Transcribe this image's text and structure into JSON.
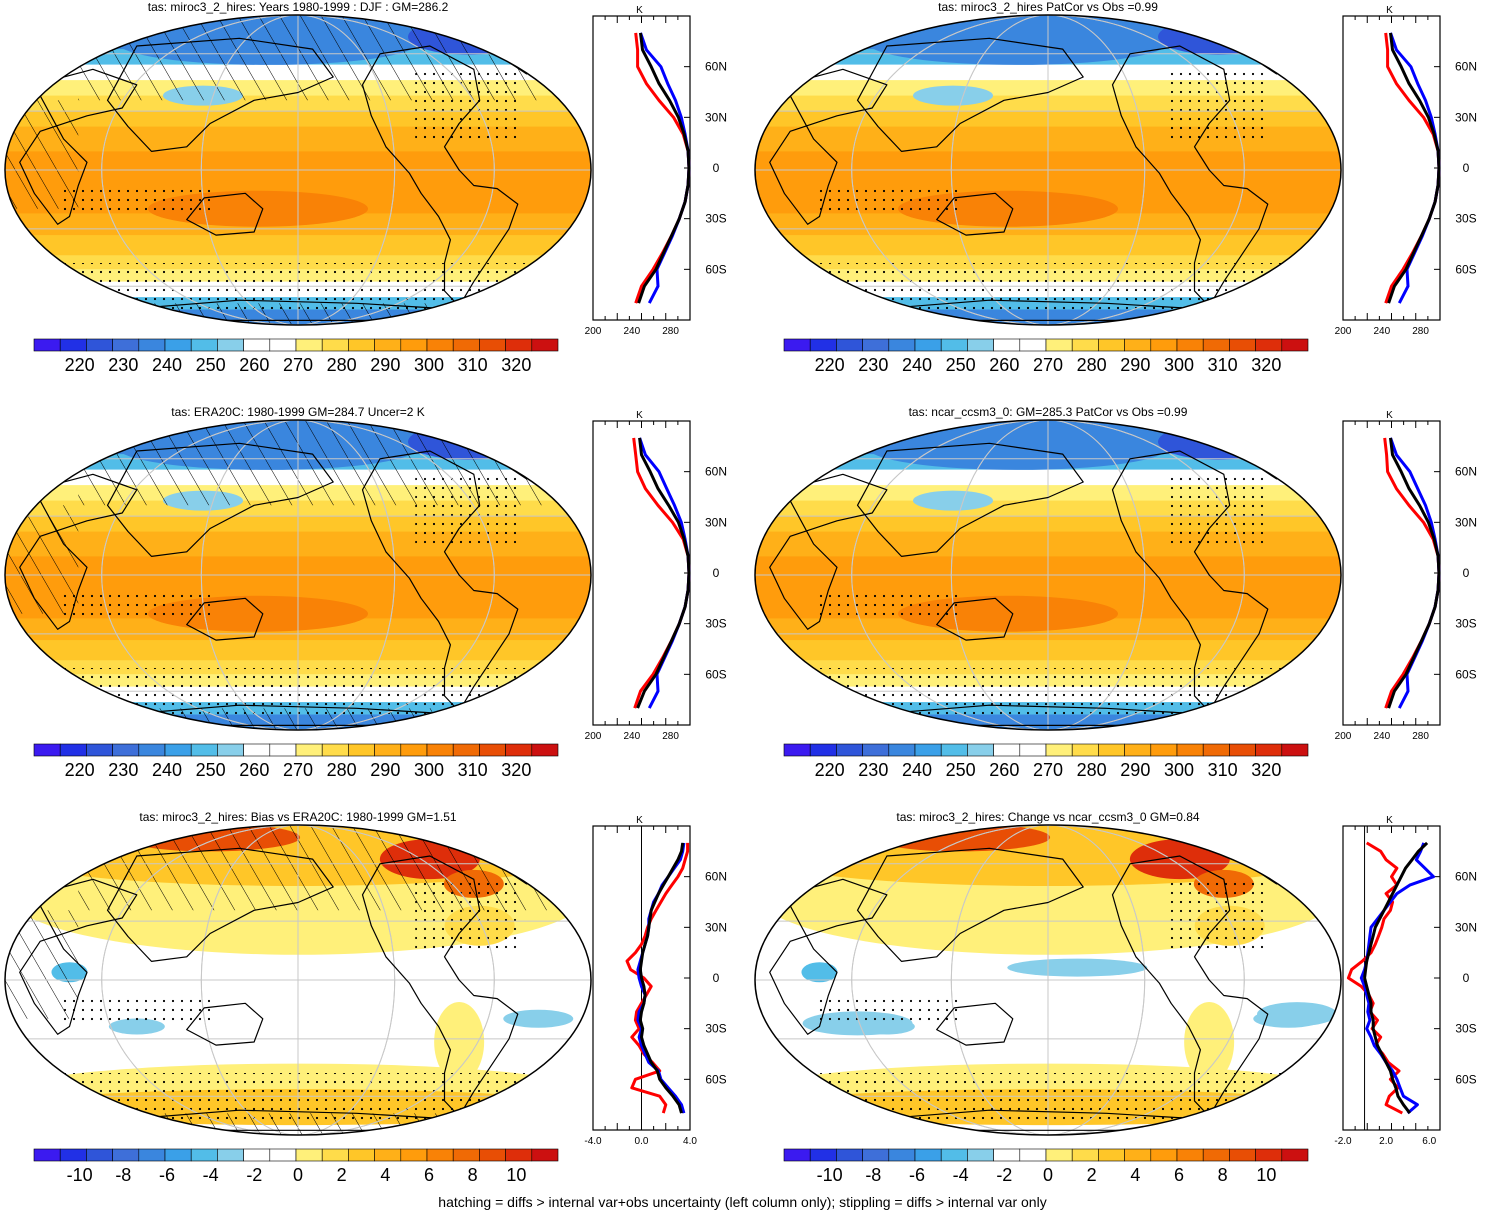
{
  "figure": {
    "footer": "hatching = diffs > internal var+obs uncertainty (left column only); stippling = diffs > internal var only"
  },
  "palettes": {
    "temperature": [
      "#3b1af0",
      "#2130e6",
      "#2f55d9",
      "#3e6fd9",
      "#3a86de",
      "#3aa0e8",
      "#52bde8",
      "#88cfea",
      "#ffffff",
      "#ffffff",
      "#fff07a",
      "#ffdc4a",
      "#ffc628",
      "#ffb018",
      "#ff9c0c",
      "#f98206",
      "#f06a05",
      "#e84e05",
      "#de2e0a",
      "#cc1010"
    ],
    "difference": [
      "#3b1af0",
      "#2130e6",
      "#2f55d9",
      "#3e6fd9",
      "#3a86de",
      "#3aa0e8",
      "#52bde8",
      "#88cfea",
      "#ffffff",
      "#ffffff",
      "#fff07a",
      "#ffdc4a",
      "#ffc628",
      "#ffb018",
      "#ff9c0c",
      "#f98206",
      "#f06a05",
      "#e84e05",
      "#de2e0a",
      "#cc1010"
    ]
  },
  "chart_data": [
    {
      "id": "p1",
      "type": "heatmap",
      "title": "tas: miroc3_2_hires: Years 1980-1999 : DJF : GM=286.2",
      "colorbar": {
        "palette": "temperature",
        "labels": [
          "220",
          "230",
          "240",
          "250",
          "260",
          "270",
          "280",
          "290",
          "300",
          "310",
          "320"
        ]
      },
      "hatching": true,
      "stippling": true,
      "lat_labels": [
        "60N",
        "30N",
        "0",
        "30S",
        "60S"
      ],
      "profile": {
        "unit_label": "K",
        "x_ticks": [
          "200",
          "240",
          "280"
        ],
        "xlim": [
          200,
          300
        ],
        "lats": [
          80,
          70,
          60,
          50,
          40,
          30,
          20,
          10,
          0,
          -10,
          -20,
          -30,
          -40,
          -50,
          -60,
          -70,
          -80
        ],
        "series": [
          {
            "color": "#ff0000",
            "values": [
              244,
              246,
              246,
              255,
              268,
              283,
              293,
              298,
              299,
              298,
              295,
              289,
              281,
              272,
              262,
              250,
              244
            ]
          },
          {
            "color": "#0000ff",
            "values": [
              249,
              255,
              270,
              277,
              285,
              291,
              295,
              298,
              299,
              298,
              295,
              289,
              282,
              274,
              266,
              267,
              258
            ]
          },
          {
            "color": "#000000",
            "values": [
              249,
              251,
              260,
              268,
              279,
              288,
              294,
              298,
              299,
              298,
              295,
              289,
              281,
              273,
              265,
              253,
              247
            ]
          }
        ]
      }
    },
    {
      "id": "p2",
      "type": "heatmap",
      "title": "tas: miroc3_2_hires PatCor vs Obs =0.99",
      "colorbar": {
        "palette": "temperature",
        "labels": [
          "220",
          "230",
          "240",
          "250",
          "260",
          "270",
          "280",
          "290",
          "300",
          "310",
          "320"
        ]
      },
      "hatching": false,
      "stippling": true,
      "lat_labels": [
        "60N",
        "30N",
        "0",
        "30S",
        "60S"
      ],
      "profile": {
        "unit_label": "K",
        "x_ticks": [
          "200",
          "240",
          "280"
        ],
        "xlim": [
          200,
          300
        ],
        "lats": [
          80,
          70,
          60,
          50,
          40,
          30,
          20,
          10,
          0,
          -10,
          -20,
          -30,
          -40,
          -50,
          -60,
          -70,
          -80
        ],
        "series": [
          {
            "color": "#ff0000",
            "values": [
              244,
              246,
              246,
              255,
              268,
              283,
              293,
              298,
              299,
              298,
              295,
              289,
              281,
              272,
              262,
              250,
              244
            ]
          },
          {
            "color": "#0000ff",
            "values": [
              249,
              255,
              270,
              277,
              285,
              291,
              295,
              298,
              299,
              298,
              295,
              289,
              282,
              274,
              266,
              267,
              258
            ]
          },
          {
            "color": "#000000",
            "values": [
              249,
              251,
              260,
              268,
              279,
              288,
              294,
              298,
              299,
              298,
              295,
              289,
              281,
              273,
              265,
              253,
              247
            ]
          }
        ]
      }
    },
    {
      "id": "p3",
      "type": "heatmap",
      "title": "tas: ERA20C: 1980-1999 GM=284.7 Uncer=2 K",
      "colorbar": {
        "palette": "temperature",
        "labels": [
          "220",
          "230",
          "240",
          "250",
          "260",
          "270",
          "280",
          "290",
          "300",
          "310",
          "320"
        ]
      },
      "hatching": true,
      "stippling": true,
      "lat_labels": [
        "60N",
        "30N",
        "0",
        "30S",
        "60S"
      ],
      "profile": {
        "unit_label": "K",
        "x_ticks": [
          "200",
          "240",
          "280"
        ],
        "xlim": [
          200,
          300
        ],
        "lats": [
          80,
          70,
          60,
          50,
          40,
          30,
          20,
          10,
          0,
          -10,
          -20,
          -30,
          -40,
          -50,
          -60,
          -70,
          -80
        ],
        "series": [
          {
            "color": "#ff0000",
            "values": [
              242,
              244,
              246,
              254,
              267,
              282,
              293,
              298,
              299,
              298,
              295,
              289,
              281,
              272,
              262,
              249,
              243
            ]
          },
          {
            "color": "#0000ff",
            "values": [
              248,
              254,
              268,
              276,
              284,
              291,
              295,
              298,
              299,
              298,
              295,
              289,
              282,
              274,
              266,
              267,
              258
            ]
          },
          {
            "color": "#000000",
            "values": [
              248,
              250,
              259,
              267,
              278,
              288,
              294,
              298,
              299,
              298,
              295,
              289,
              281,
              273,
              265,
              253,
              246
            ]
          }
        ]
      }
    },
    {
      "id": "p4",
      "type": "heatmap",
      "title": "tas: ncar_ccsm3_0: GM=285.3 PatCor vs Obs =0.99",
      "colorbar": {
        "palette": "temperature",
        "labels": [
          "220",
          "230",
          "240",
          "250",
          "260",
          "270",
          "280",
          "290",
          "300",
          "310",
          "320"
        ]
      },
      "hatching": false,
      "stippling": true,
      "lat_labels": [
        "60N",
        "30N",
        "0",
        "30S",
        "60S"
      ],
      "profile": {
        "unit_label": "K",
        "x_ticks": [
          "200",
          "240",
          "280"
        ],
        "xlim": [
          200,
          300
        ],
        "lats": [
          80,
          70,
          60,
          50,
          40,
          30,
          20,
          10,
          0,
          -10,
          -20,
          -30,
          -40,
          -50,
          -60,
          -70,
          -80
        ],
        "series": [
          {
            "color": "#ff0000",
            "values": [
              243,
              245,
              246,
              255,
              268,
              283,
              293,
              298,
              299,
              298,
              295,
              289,
              281,
              272,
              262,
              250,
              244
            ]
          },
          {
            "color": "#0000ff",
            "values": [
              249,
              255,
              269,
              277,
              285,
              291,
              295,
              298,
              299,
              298,
              295,
              289,
              282,
              274,
              266,
              267,
              258
            ]
          },
          {
            "color": "#000000",
            "values": [
              249,
              251,
              260,
              268,
              279,
              288,
              294,
              298,
              299,
              298,
              295,
              289,
              281,
              273,
              265,
              253,
              247
            ]
          }
        ]
      }
    },
    {
      "id": "p5",
      "type": "heatmap",
      "title": "tas: miroc3_2_hires: Bias vs ERA20C: 1980-1999 GM=1.51",
      "colorbar": {
        "palette": "difference",
        "labels": [
          "-10",
          "-8",
          "-6",
          "-4",
          "-2",
          "0",
          "2",
          "4",
          "6",
          "8",
          "10"
        ]
      },
      "hatching": true,
      "stippling": true,
      "lat_labels": [
        "60N",
        "30N",
        "0",
        "30S",
        "60S"
      ],
      "profile": {
        "unit_label": "K",
        "x_ticks": [
          "-4.0",
          "0.0",
          "4.0"
        ],
        "xlim": [
          -4,
          4
        ],
        "lats": [
          80,
          75,
          70,
          65,
          60,
          55,
          50,
          45,
          40,
          35,
          30,
          25,
          20,
          15,
          10,
          5,
          0,
          -5,
          -10,
          -15,
          -20,
          -25,
          -30,
          -35,
          -40,
          -45,
          -50,
          -55,
          -60,
          -65,
          -70,
          -75,
          -80
        ],
        "series": [
          {
            "color": "#ff0000",
            "values": [
              3.8,
              3.8,
              3.6,
              3.4,
              3.0,
              2.5,
              2.0,
              1.6,
              1.2,
              0.8,
              0.5,
              0.3,
              0.0,
              -0.5,
              -1.2,
              -0.9,
              0.2,
              0.8,
              0.4,
              0.0,
              -0.4,
              -0.5,
              -0.2,
              -0.8,
              -0.2,
              0.2,
              0.9,
              1.5,
              -0.5,
              -0.8,
              1.5,
              2.0,
              1.8
            ]
          },
          {
            "color": "#0000ff",
            "values": [
              3.5,
              3.4,
              3.2,
              2.7,
              2.2,
              1.7,
              1.4,
              1.0,
              0.8,
              0.6,
              0.6,
              0.5,
              0.3,
              0.1,
              -0.1,
              -0.3,
              -0.2,
              0.0,
              0.3,
              0.2,
              -0.2,
              -0.3,
              0.0,
              -0.2,
              0.0,
              0.3,
              0.6,
              1.4,
              1.6,
              2.2,
              2.8,
              3.3,
              3.5
            ]
          },
          {
            "color": "#000000",
            "values": [
              3.4,
              3.3,
              3.0,
              2.6,
              2.2,
              1.8,
              1.4,
              1.1,
              0.8,
              0.7,
              0.6,
              0.5,
              0.3,
              0.1,
              0.0,
              -0.1,
              0.0,
              0.2,
              0.3,
              0.2,
              0.0,
              -0.1,
              0.1,
              0.0,
              0.2,
              0.5,
              0.8,
              1.3,
              1.5,
              2.0,
              2.6,
              3.1,
              3.3
            ]
          }
        ]
      }
    },
    {
      "id": "p6",
      "type": "heatmap",
      "title": "tas: miroc3_2_hires: Change vs ncar_ccsm3_0 GM=0.84",
      "colorbar": {
        "palette": "difference",
        "labels": [
          "-10",
          "-8",
          "-6",
          "-4",
          "-2",
          "0",
          "2",
          "4",
          "6",
          "8",
          "10"
        ]
      },
      "hatching": false,
      "stippling": true,
      "lat_labels": [
        "60N",
        "30N",
        "0",
        "30S",
        "60S"
      ],
      "profile": {
        "unit_label": "K",
        "x_ticks": [
          "-2.0",
          "2.0",
          "6.0"
        ],
        "xlim": [
          -2,
          7
        ],
        "lats": [
          80,
          75,
          70,
          65,
          60,
          55,
          50,
          45,
          40,
          35,
          30,
          25,
          20,
          15,
          10,
          5,
          0,
          -5,
          -10,
          -15,
          -20,
          -25,
          -30,
          -35,
          -40,
          -45,
          -50,
          -55,
          -60,
          -65,
          -70,
          -75,
          -80
        ],
        "series": [
          {
            "color": "#ff0000",
            "values": [
              0.2,
              1.5,
              2.0,
              3.0,
              2.5,
              3.0,
              2.0,
              2.6,
              2.4,
              1.8,
              1.6,
              1.3,
              1.0,
              0.6,
              -0.2,
              -1.2,
              -1.5,
              -0.3,
              0.4,
              0.8,
              0.5,
              1.2,
              0.7,
              1.5,
              1.0,
              1.7,
              2.2,
              3.2,
              2.4,
              3.1,
              2.3,
              2.0,
              3.5
            ]
          },
          {
            "color": "#0000ff",
            "values": [
              5.5,
              5.2,
              4.8,
              5.6,
              6.4,
              4.2,
              3.0,
              2.4,
              1.8,
              1.2,
              0.6,
              0.5,
              0.4,
              0.3,
              0.2,
              0.0,
              -0.3,
              0.0,
              0.2,
              0.4,
              0.3,
              0.5,
              0.2,
              0.6,
              0.9,
              1.5,
              2.0,
              2.6,
              3.0,
              3.3,
              3.6,
              4.9,
              4.0
            ]
          },
          {
            "color": "#000000",
            "values": [
              5.8,
              5.0,
              4.4,
              3.8,
              3.4,
              3.0,
              2.6,
              2.2,
              1.8,
              1.4,
              1.0,
              0.8,
              0.6,
              0.4,
              0.2,
              0.1,
              0.0,
              0.2,
              0.4,
              0.6,
              0.6,
              0.8,
              0.8,
              1.0,
              1.2,
              1.6,
              2.0,
              2.4,
              2.6,
              2.9,
              3.1,
              3.6,
              4.2
            ]
          }
        ]
      }
    }
  ]
}
